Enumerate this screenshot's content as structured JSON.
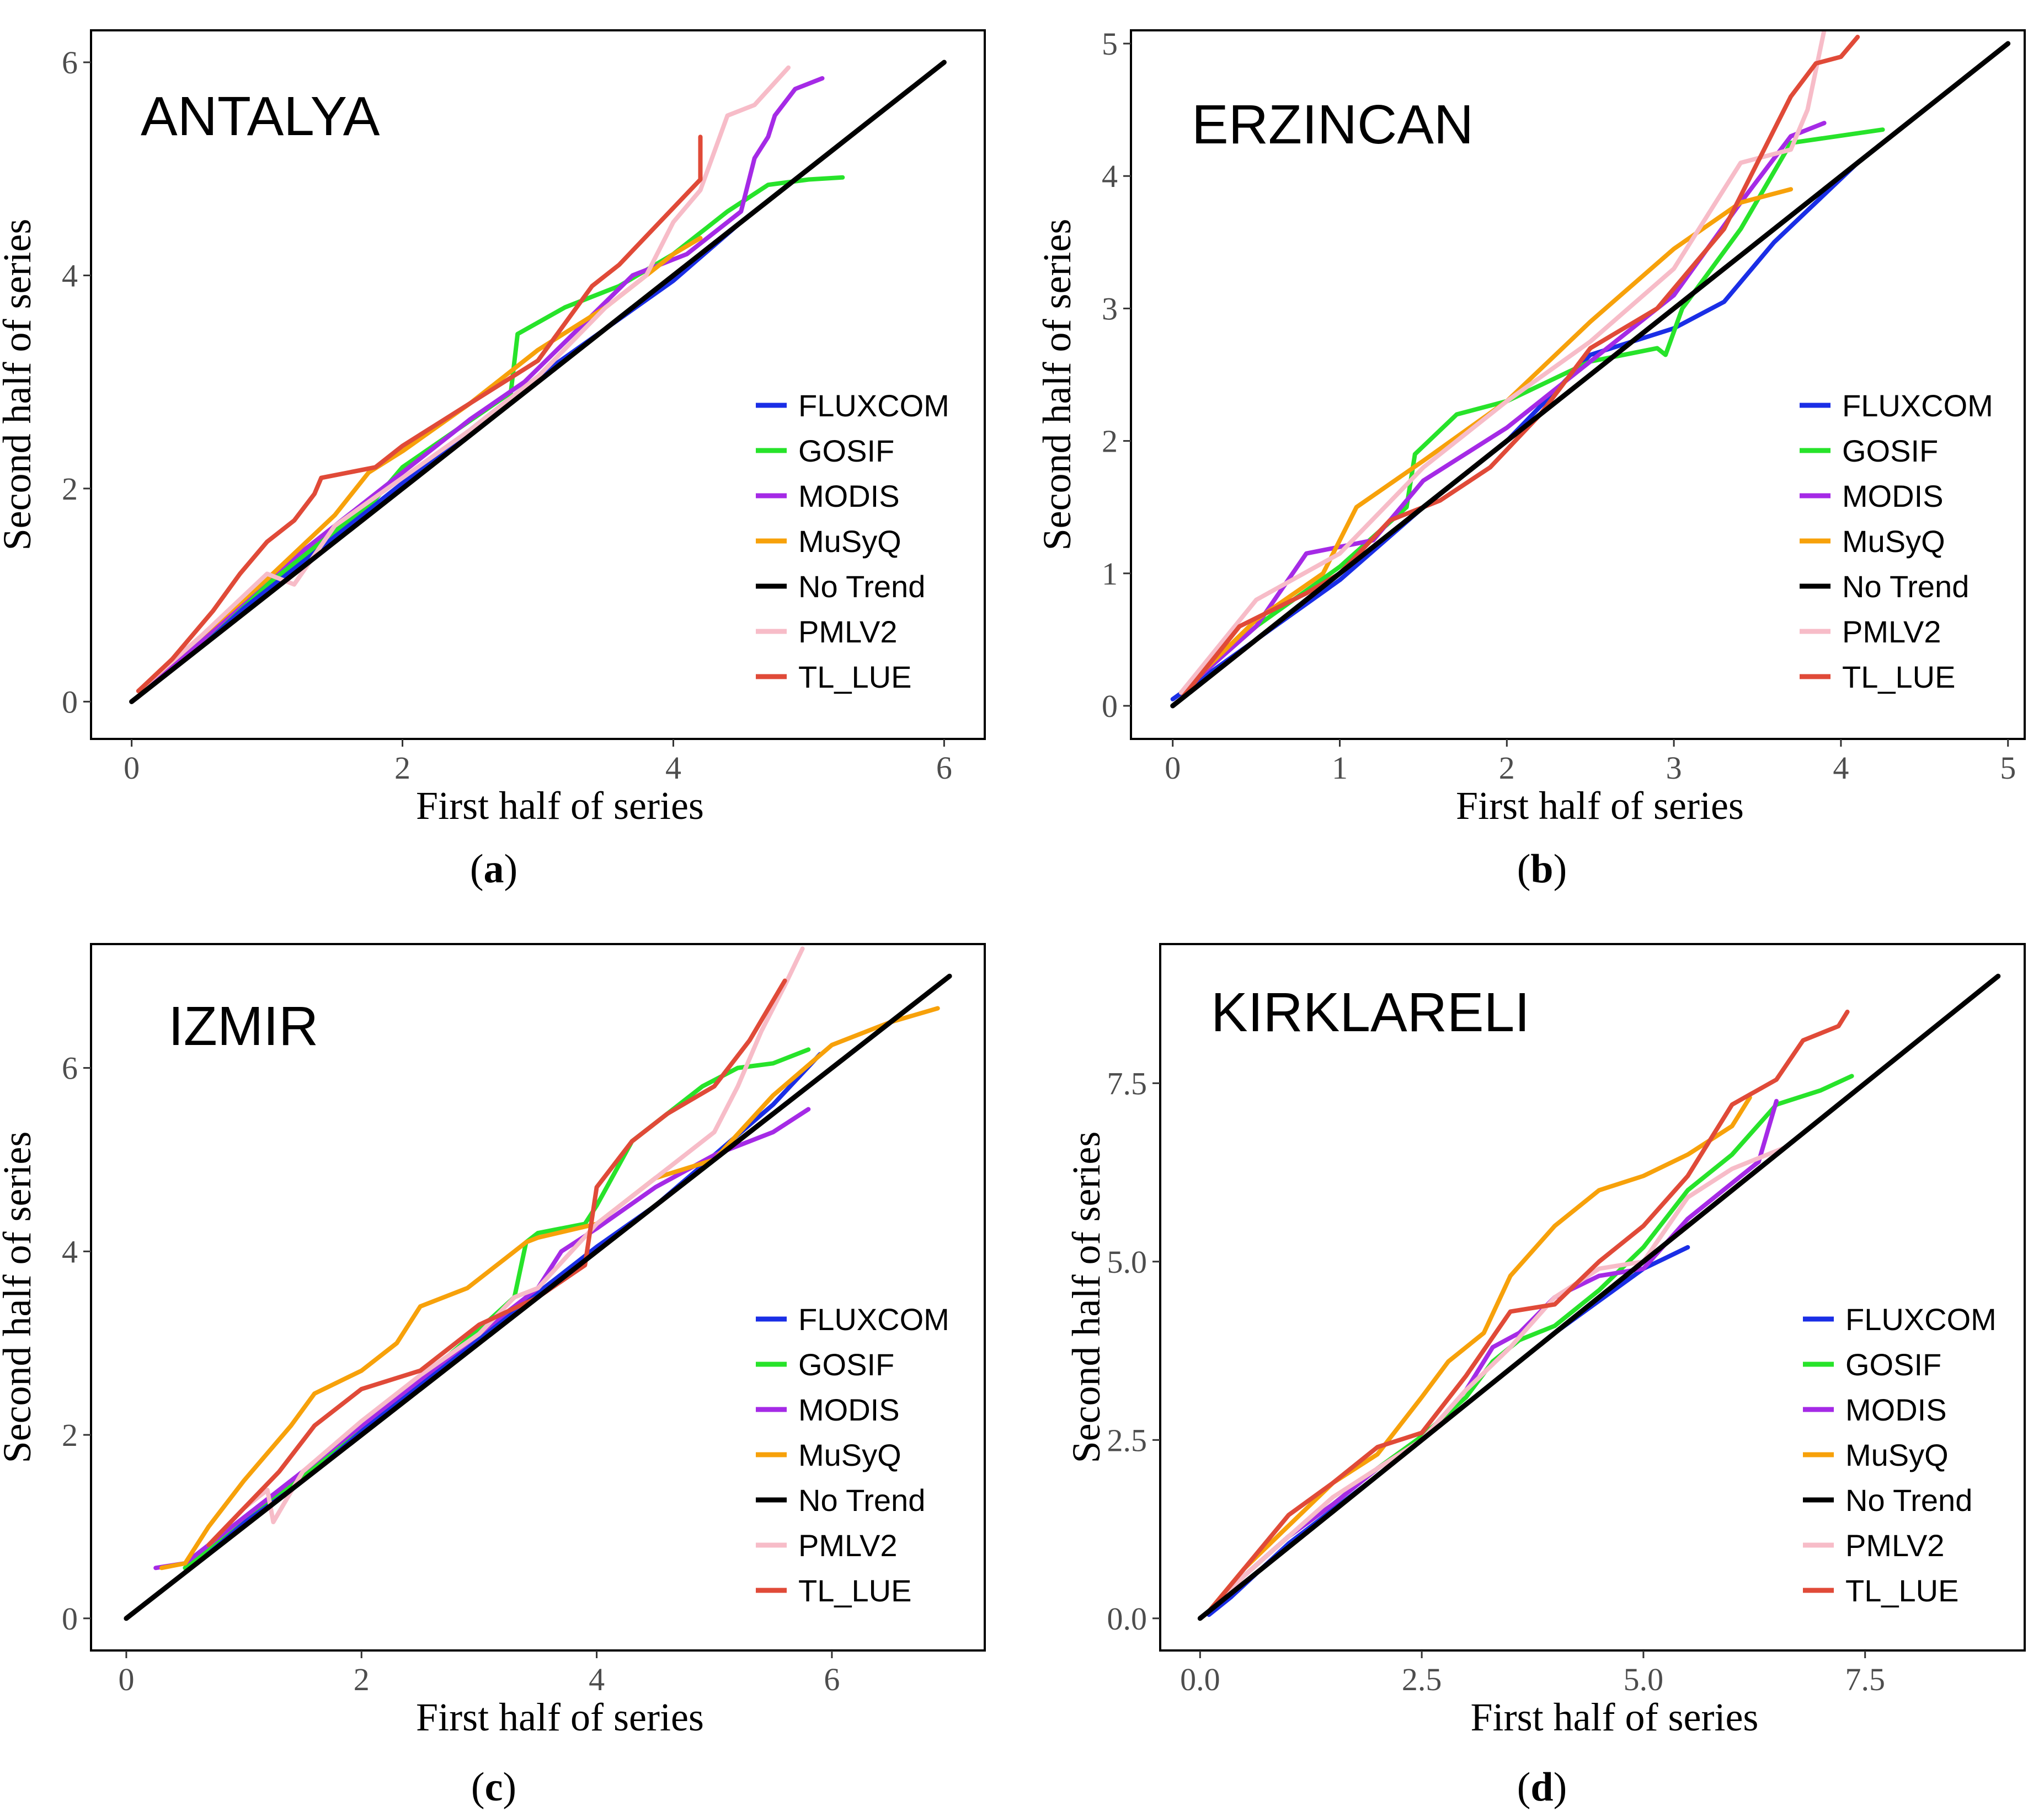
{
  "figure": {
    "series_names": [
      "FLUXCOM",
      "GOSIF",
      "MODIS",
      "MuSyQ",
      "No Trend",
      "PMLV2",
      "TL_LUE"
    ],
    "series_colors": {
      "FLUXCOM": "#1a2ee6",
      "GOSIF": "#27e32a",
      "MODIS": "#a52ae6",
      "MuSyQ": "#f7a10a",
      "No Trend": "#000000",
      "PMLV2": "#f7bcc8",
      "TL_LUE": "#e04a38"
    }
  },
  "chart_data": [
    {
      "type": "line",
      "panel": "(a)",
      "panel_letter": "a",
      "station": "ANTALYA",
      "xlabel": "First half of series",
      "ylabel": "Second half of series",
      "xlim": [
        -0.3,
        6.3
      ],
      "ylim": [
        -0.35,
        6.3
      ],
      "xticks": [
        "0",
        "2",
        "4",
        "6"
      ],
      "xtick_values": [
        0,
        2,
        4,
        6
      ],
      "yticks": [
        "0",
        "2",
        "4",
        "6"
      ],
      "ytick_values": [
        0,
        2,
        4,
        6
      ],
      "legend": [
        "FLUXCOM",
        "GOSIF",
        "MODIS",
        "MuSyQ",
        "No Trend",
        "PMLV2",
        "TL_LUE"
      ],
      "series": [
        {
          "name": "FLUXCOM",
          "x": [
            0.05,
            0.5,
            1.0,
            1.5,
            2.0,
            2.5,
            3.0,
            3.5,
            4.0,
            4.5,
            4.7
          ],
          "y": [
            0.1,
            0.55,
            1.05,
            1.55,
            2.05,
            2.55,
            3.05,
            3.5,
            3.95,
            4.5,
            4.7
          ]
        },
        {
          "name": "GOSIF",
          "x": [
            0.05,
            0.5,
            0.8,
            1.0,
            1.2,
            1.5,
            1.8,
            2.0,
            2.4,
            2.8,
            2.85,
            3.2,
            3.5,
            3.6,
            4.0,
            4.4,
            4.7,
            5.0,
            5.25
          ],
          "y": [
            0.1,
            0.55,
            0.9,
            1.1,
            1.3,
            1.6,
            1.9,
            2.2,
            2.55,
            2.9,
            3.45,
            3.7,
            3.85,
            3.9,
            4.2,
            4.6,
            4.85,
            4.9,
            4.92
          ]
        },
        {
          "name": "MODIS",
          "x": [
            0.05,
            0.5,
            1.0,
            1.5,
            2.0,
            2.5,
            2.9,
            3.3,
            3.7,
            4.1,
            4.5,
            4.6,
            4.7,
            4.75,
            4.9,
            5.1
          ],
          "y": [
            0.1,
            0.55,
            1.15,
            1.65,
            2.15,
            2.65,
            3.0,
            3.5,
            4.0,
            4.2,
            4.6,
            5.1,
            5.3,
            5.5,
            5.75,
            5.85
          ]
        },
        {
          "name": "MuSyQ",
          "x": [
            0.05,
            0.5,
            1.0,
            1.5,
            1.75,
            2.0,
            2.5,
            3.0,
            3.5,
            4.0,
            4.2
          ],
          "y": [
            0.1,
            0.6,
            1.15,
            1.75,
            2.15,
            2.35,
            2.8,
            3.3,
            3.7,
            4.2,
            4.35
          ]
        },
        {
          "name": "No Trend",
          "x": [
            0,
            6
          ],
          "y": [
            0,
            6
          ]
        },
        {
          "name": "PMLV2",
          "x": [
            0.05,
            0.5,
            1.0,
            1.2,
            1.5,
            2.0,
            2.5,
            3.0,
            3.5,
            3.8,
            4.0,
            4.2,
            4.4,
            4.6,
            4.85
          ],
          "y": [
            0.1,
            0.6,
            1.2,
            1.1,
            1.65,
            2.1,
            2.55,
            3.05,
            3.7,
            4.0,
            4.5,
            4.8,
            5.5,
            5.6,
            5.95
          ]
        },
        {
          "name": "TL_LUE",
          "x": [
            0.05,
            0.3,
            0.6,
            0.8,
            1.0,
            1.2,
            1.35,
            1.4,
            1.8,
            2.0,
            2.5,
            3.0,
            3.4,
            3.6,
            3.9,
            4.2,
            4.2
          ],
          "y": [
            0.1,
            0.4,
            0.85,
            1.2,
            1.5,
            1.7,
            1.95,
            2.1,
            2.2,
            2.4,
            2.8,
            3.2,
            3.9,
            4.1,
            4.5,
            4.9,
            5.3
          ]
        }
      ]
    },
    {
      "type": "line",
      "panel": "(b)",
      "panel_letter": "b",
      "station": "ERZINCAN",
      "xlabel": "First half of series",
      "ylabel": "Second half of series",
      "xlim": [
        -0.25,
        5.1
      ],
      "ylim": [
        -0.25,
        5.1
      ],
      "xticks": [
        "0",
        "1",
        "2",
        "3",
        "4",
        "5"
      ],
      "xtick_values": [
        0,
        1,
        2,
        3,
        4,
        5
      ],
      "yticks": [
        "0",
        "1",
        "2",
        "3",
        "4",
        "5"
      ],
      "ytick_values": [
        0,
        1,
        2,
        3,
        4,
        5
      ],
      "legend": [
        "FLUXCOM",
        "GOSIF",
        "MODIS",
        "MuSyQ",
        "No Trend",
        "PMLV2",
        "TL_LUE"
      ],
      "series": [
        {
          "name": "FLUXCOM",
          "x": [
            0.0,
            0.5,
            1.0,
            1.5,
            2.0,
            2.5,
            3.0,
            3.3,
            3.6,
            4.1
          ],
          "y": [
            0.05,
            0.5,
            0.95,
            1.5,
            2.0,
            2.65,
            2.85,
            3.05,
            3.5,
            4.1
          ]
        },
        {
          "name": "GOSIF",
          "x": [
            0.05,
            0.5,
            1.0,
            1.4,
            1.45,
            1.7,
            2.0,
            2.5,
            2.9,
            2.95,
            3.05,
            3.4,
            3.7,
            4.25
          ],
          "y": [
            0.1,
            0.6,
            1.05,
            1.5,
            1.9,
            2.2,
            2.3,
            2.6,
            2.7,
            2.65,
            3.0,
            3.6,
            4.25,
            4.35
          ]
        },
        {
          "name": "MODIS",
          "x": [
            0.05,
            0.5,
            0.8,
            1.2,
            1.5,
            2.0,
            2.5,
            3.0,
            3.4,
            3.7,
            3.9
          ],
          "y": [
            0.1,
            0.6,
            1.15,
            1.25,
            1.7,
            2.1,
            2.6,
            3.1,
            3.8,
            4.3,
            4.4
          ]
        },
        {
          "name": "MuSyQ",
          "x": [
            0.05,
            0.5,
            0.9,
            1.1,
            1.5,
            2.0,
            2.5,
            3.0,
            3.4,
            3.7
          ],
          "y": [
            0.1,
            0.65,
            1.0,
            1.5,
            1.85,
            2.3,
            2.9,
            3.45,
            3.8,
            3.9
          ]
        },
        {
          "name": "No Trend",
          "x": [
            0,
            5
          ],
          "y": [
            0,
            5
          ]
        },
        {
          "name": "PMLV2",
          "x": [
            0.05,
            0.5,
            1.0,
            1.5,
            2.0,
            2.5,
            3.0,
            3.4,
            3.7,
            3.8,
            3.85,
            3.9
          ],
          "y": [
            0.1,
            0.8,
            1.15,
            1.8,
            2.3,
            2.75,
            3.3,
            4.1,
            4.2,
            4.5,
            4.8,
            5.1
          ]
        },
        {
          "name": "TL_LUE",
          "x": [
            0.05,
            0.4,
            0.8,
            1.0,
            1.3,
            1.6,
            1.9,
            2.2,
            2.5,
            2.9,
            3.3,
            3.5,
            3.7,
            3.85,
            4.0,
            4.1
          ],
          "y": [
            0.05,
            0.6,
            0.85,
            1.0,
            1.4,
            1.55,
            1.8,
            2.2,
            2.7,
            3.0,
            3.6,
            4.1,
            4.6,
            4.85,
            4.9,
            5.05
          ]
        }
      ]
    },
    {
      "type": "line",
      "panel": "(c)",
      "panel_letter": "c",
      "station": "IZMIR",
      "xlabel": "First half of series",
      "ylabel": "Second half of series",
      "xlim": [
        -0.3,
        7.3
      ],
      "ylim": [
        -0.35,
        7.35
      ],
      "xticks": [
        "0",
        "2",
        "4",
        "6"
      ],
      "xtick_values": [
        0,
        2,
        4,
        6
      ],
      "yticks": [
        "0",
        "2",
        "4",
        "6"
      ],
      "ytick_values": [
        0,
        2,
        4,
        6
      ],
      "legend": [
        "FLUXCOM",
        "GOSIF",
        "MODIS",
        "MuSyQ",
        "No Trend",
        "PMLV2",
        "TL_LUE"
      ],
      "series": [
        {
          "name": "FLUXCOM",
          "x": [
            0.5,
            1.0,
            1.5,
            2.0,
            2.5,
            3.0,
            3.5,
            4.0,
            4.5,
            5.0,
            5.5,
            5.9
          ],
          "y": [
            0.55,
            1.05,
            1.55,
            2.05,
            2.55,
            3.05,
            3.55,
            4.05,
            4.5,
            5.05,
            5.6,
            6.15
          ]
        },
        {
          "name": "GOSIF",
          "x": [
            0.5,
            1.0,
            1.5,
            2.0,
            2.5,
            3.0,
            3.3,
            3.4,
            3.5,
            3.9,
            4.0,
            4.3,
            4.6,
            4.9,
            5.2,
            5.5,
            5.8
          ],
          "y": [
            0.55,
            1.1,
            1.55,
            2.1,
            2.6,
            3.15,
            3.5,
            4.1,
            4.2,
            4.3,
            4.5,
            5.2,
            5.5,
            5.8,
            6.0,
            6.05,
            6.2
          ]
        },
        {
          "name": "MODIS",
          "x": [
            0.25,
            0.5,
            1.0,
            1.5,
            2.0,
            2.5,
            3.0,
            3.5,
            3.7,
            4.0,
            4.5,
            5.0,
            5.5,
            5.8
          ],
          "y": [
            0.55,
            0.6,
            1.1,
            1.6,
            2.1,
            2.6,
            3.1,
            3.6,
            4.0,
            4.25,
            4.7,
            5.05,
            5.3,
            5.55
          ]
        },
        {
          "name": "MuSyQ",
          "x": [
            0.3,
            0.5,
            0.7,
            1.0,
            1.4,
            1.6,
            2.0,
            2.3,
            2.5,
            2.9,
            3.2,
            3.4,
            3.5,
            4.0,
            4.5,
            5.0,
            5.5,
            6.0,
            6.5,
            6.9
          ],
          "y": [
            0.55,
            0.6,
            1.0,
            1.5,
            2.1,
            2.45,
            2.7,
            3.0,
            3.4,
            3.6,
            3.9,
            4.1,
            4.15,
            4.3,
            4.8,
            5.0,
            5.7,
            6.25,
            6.5,
            6.65
          ]
        },
        {
          "name": "No Trend",
          "x": [
            0,
            7
          ],
          "y": [
            0,
            7
          ]
        },
        {
          "name": "PMLV2",
          "x": [
            0.7,
            1.0,
            1.2,
            1.25,
            1.5,
            2.0,
            2.5,
            3.0,
            3.3,
            3.5,
            4.0,
            4.5,
            5.0,
            5.2,
            5.4,
            5.6,
            5.75
          ],
          "y": [
            0.8,
            1.2,
            1.4,
            1.05,
            1.6,
            2.15,
            2.65,
            3.1,
            3.5,
            3.6,
            4.3,
            4.8,
            5.3,
            5.8,
            6.4,
            6.9,
            7.3
          ]
        },
        {
          "name": "TL_LUE",
          "x": [
            0.7,
            1.0,
            1.3,
            1.6,
            2.0,
            2.5,
            3.0,
            3.5,
            3.9,
            4.0,
            4.3,
            4.6,
            5.0,
            5.3,
            5.6
          ],
          "y": [
            0.8,
            1.2,
            1.6,
            2.1,
            2.5,
            2.7,
            3.2,
            3.5,
            3.85,
            4.7,
            5.2,
            5.5,
            5.8,
            6.3,
            6.95
          ]
        }
      ]
    },
    {
      "type": "line",
      "panel": "(d)",
      "panel_letter": "d",
      "station": "KIRKLARELI",
      "xlabel": "First half of series",
      "ylabel": "Second half of series",
      "xlim": [
        -0.45,
        9.3
      ],
      "ylim": [
        -0.45,
        9.45
      ],
      "xticks": [
        "0.0",
        "2.5",
        "5.0",
        "7.5"
      ],
      "xtick_values": [
        0.0,
        2.5,
        5.0,
        7.5
      ],
      "yticks": [
        "0.0",
        "2.5",
        "5.0",
        "7.5"
      ],
      "ytick_values": [
        0.0,
        2.5,
        5.0,
        7.5
      ],
      "legend": [
        "FLUXCOM",
        "GOSIF",
        "MODIS",
        "MuSyQ",
        "No Trend",
        "PMLV2",
        "TL_LUE"
      ],
      "series": [
        {
          "name": "FLUXCOM",
          "x": [
            0.1,
            0.35,
            1.0,
            2.0,
            3.0,
            4.0,
            5.0,
            5.5
          ],
          "y": [
            0.05,
            0.3,
            1.05,
            2.0,
            3.0,
            4.0,
            4.9,
            5.2
          ]
        },
        {
          "name": "GOSIF",
          "x": [
            0.1,
            0.5,
            1.0,
            1.5,
            2.0,
            2.5,
            3.0,
            3.3,
            3.6,
            4.0,
            4.5,
            5.0,
            5.5,
            6.0,
            6.5,
            7.0,
            7.35
          ],
          "y": [
            0.1,
            0.6,
            1.15,
            1.6,
            2.1,
            2.55,
            3.1,
            3.6,
            3.9,
            4.1,
            4.6,
            5.2,
            6.0,
            6.5,
            7.2,
            7.4,
            7.6
          ]
        },
        {
          "name": "MODIS",
          "x": [
            0.1,
            0.5,
            1.0,
            1.5,
            2.0,
            2.5,
            3.0,
            3.3,
            3.6,
            4.0,
            4.5,
            5.0,
            5.5,
            6.0,
            6.3,
            6.5
          ],
          "y": [
            0.1,
            0.6,
            1.15,
            1.6,
            2.1,
            2.5,
            3.2,
            3.8,
            4.0,
            4.5,
            4.8,
            4.9,
            5.6,
            6.1,
            6.4,
            7.25
          ]
        },
        {
          "name": "MuSyQ",
          "x": [
            0.1,
            0.5,
            1.0,
            1.5,
            2.0,
            2.5,
            2.8,
            3.2,
            3.5,
            4.0,
            4.5,
            5.0,
            5.5,
            6.0,
            6.2
          ],
          "y": [
            0.1,
            0.7,
            1.3,
            1.9,
            2.3,
            3.1,
            3.6,
            4.0,
            4.8,
            5.5,
            6.0,
            6.2,
            6.5,
            6.9,
            7.3
          ]
        },
        {
          "name": "No Trend",
          "x": [
            0,
            9
          ],
          "y": [
            0,
            9
          ]
        },
        {
          "name": "PMLV2",
          "x": [
            0.1,
            0.5,
            1.0,
            1.5,
            2.0,
            2.5,
            3.0,
            3.5,
            4.0,
            4.5,
            5.0,
            5.5,
            6.0,
            6.5,
            6.6
          ],
          "y": [
            0.1,
            0.6,
            1.15,
            1.7,
            2.1,
            2.5,
            3.2,
            3.8,
            4.5,
            4.9,
            5.0,
            5.9,
            6.3,
            6.55,
            6.6
          ]
        },
        {
          "name": "TL_LUE",
          "x": [
            0.1,
            0.5,
            1.0,
            1.5,
            2.0,
            2.5,
            3.0,
            3.5,
            4.0,
            4.5,
            5.0,
            5.5,
            6.0,
            6.5,
            6.8,
            7.2,
            7.3
          ],
          "y": [
            0.1,
            0.7,
            1.45,
            1.9,
            2.4,
            2.6,
            3.4,
            4.3,
            4.4,
            5.0,
            5.5,
            6.2,
            7.2,
            7.55,
            8.1,
            8.3,
            8.5
          ]
        }
      ]
    }
  ]
}
